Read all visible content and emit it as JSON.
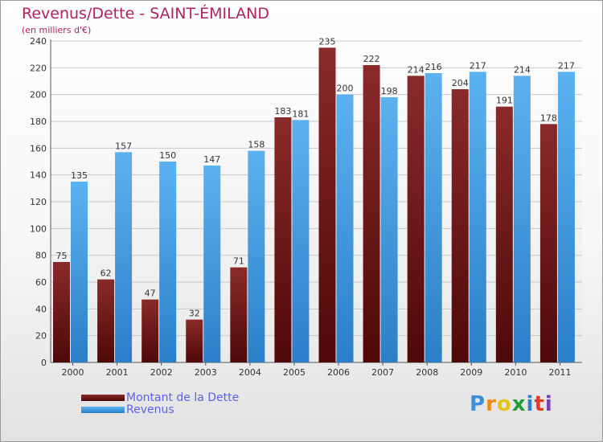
{
  "chart_data": {
    "type": "bar",
    "title": "Revenus/Dette - SAINT-ÉMILAND",
    "subtitle": "(en milliers d'€)",
    "categories": [
      "2000",
      "2001",
      "2002",
      "2003",
      "2004",
      "2005",
      "2006",
      "2007",
      "2008",
      "2009",
      "2010",
      "2011"
    ],
    "series": [
      {
        "name": "Montant de la Dette",
        "values": [
          75,
          62,
          47,
          32,
          71,
          183,
          235,
          222,
          214,
          204,
          191,
          178
        ],
        "color": "#7b1c1c"
      },
      {
        "name": "Revenus",
        "values": [
          135,
          157,
          150,
          147,
          158,
          181,
          200,
          198,
          216,
          217,
          214,
          217
        ],
        "color": "#4aa3e8"
      }
    ],
    "ylim": [
      0,
      240
    ],
    "yticks": [
      0,
      20,
      40,
      60,
      80,
      100,
      120,
      140,
      160,
      180,
      200,
      220,
      240
    ],
    "grid": true,
    "legend_position": "bottom-left",
    "xlabel": "",
    "ylabel": ""
  },
  "logo": {
    "letters": [
      "P",
      "r",
      "o",
      "x",
      "i",
      "t",
      "i"
    ],
    "colors": [
      "#3d8fd8",
      "#f08a1a",
      "#e8c21a",
      "#1d9f3a",
      "#2f7fd0",
      "#e23b2a",
      "#7a3fb8"
    ]
  }
}
